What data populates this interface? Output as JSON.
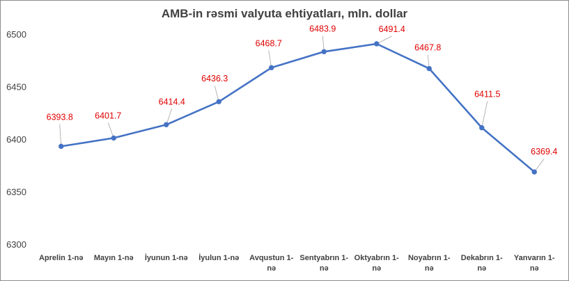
{
  "chart_data": {
    "type": "line",
    "title": "AMB-in rəsmi valyuta ehtiyatları, mln. dollar",
    "categories": [
      [
        "Aprelin 1-nə"
      ],
      [
        "Mayın 1-nə"
      ],
      [
        "İyunun 1-nə"
      ],
      [
        "İyulun 1-nə"
      ],
      [
        "Avqustun 1-",
        "nə"
      ],
      [
        "Sentyabrın 1-",
        "nə"
      ],
      [
        "Oktyabrın 1-",
        "nə"
      ],
      [
        "Noyabrın 1-",
        "nə"
      ],
      [
        "Dekabrın 1-",
        "nə"
      ],
      [
        "Yanvarın 1-",
        "nə"
      ]
    ],
    "values": [
      6393.8,
      6401.7,
      6414.4,
      6436.3,
      6468.7,
      6483.9,
      6491.4,
      6467.8,
      6411.5,
      6369.4
    ],
    "data_labels": [
      "6393.8",
      "6401.7",
      "6414.4",
      "6436.3",
      "6468.7",
      "6483.9",
      "6491.4",
      "6467.8",
      "6411.5",
      "6369.4"
    ],
    "yticks": [
      "6300",
      "6350",
      "6400",
      "6450",
      "6500"
    ],
    "ylim": [
      6300,
      6500
    ],
    "grid": false,
    "legend": "none",
    "line_color": "#4472c4",
    "label_color": "#e00000",
    "text_color": "#404040"
  }
}
